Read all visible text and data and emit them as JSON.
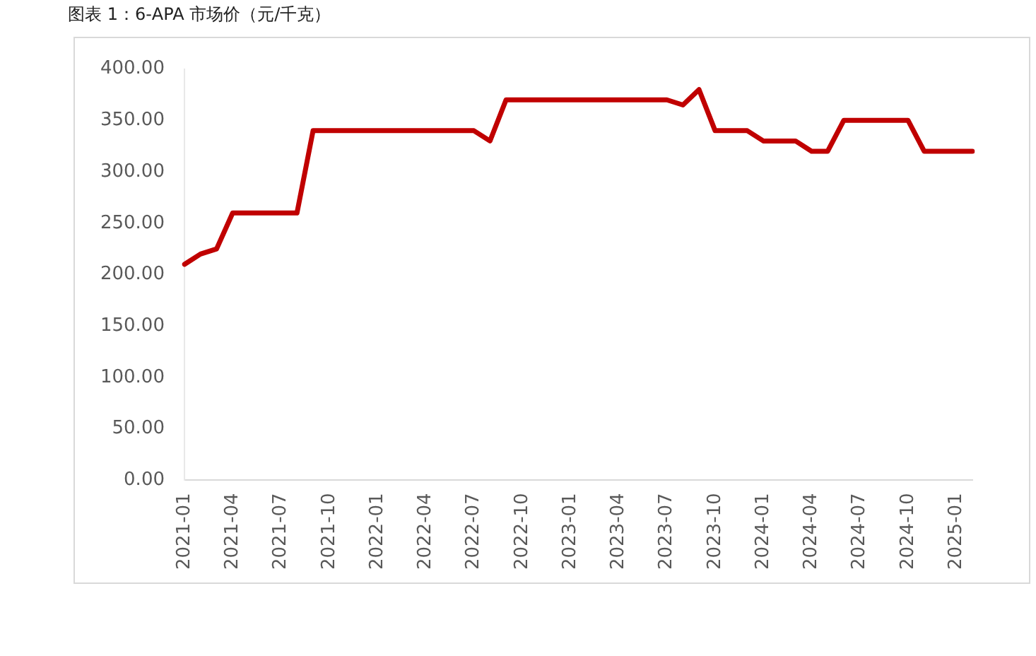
{
  "chart_data": {
    "type": "line",
    "title": "图表 1：6-APA 市场价（元/千克）",
    "categories": [
      "2021-01",
      null,
      null,
      "2021-04",
      null,
      null,
      "2021-07",
      null,
      null,
      "2021-10",
      null,
      null,
      "2022-01",
      null,
      null,
      "2022-04",
      null,
      null,
      "2022-07",
      null,
      null,
      "2022-10",
      null,
      null,
      "2023-01",
      null,
      null,
      "2023-04",
      null,
      null,
      "2023-07",
      null,
      null,
      "2023-10",
      null,
      null,
      "2024-01",
      null,
      null,
      "2024-04",
      null,
      null,
      "2024-07",
      null,
      null,
      "2024-10",
      null,
      null,
      "2025-01",
      null
    ],
    "series": [
      {
        "color": "#c00000",
        "values": [
          210,
          220,
          225,
          260,
          260,
          260,
          260,
          260,
          340,
          340,
          340,
          340,
          340,
          340,
          340,
          340,
          340,
          340,
          340,
          330,
          370,
          370,
          370,
          370,
          370,
          370,
          370,
          370,
          370,
          370,
          370,
          365,
          380,
          340,
          340,
          340,
          330,
          330,
          330,
          320,
          320,
          350,
          350,
          350,
          350,
          350,
          320,
          320,
          320,
          320
        ]
      }
    ],
    "ylim": [
      0,
      400
    ],
    "yticks": [
      {
        "value": 0,
        "label": "0.00"
      },
      {
        "value": 50,
        "label": "50.00"
      },
      {
        "value": 100,
        "label": "100.00"
      },
      {
        "value": 150,
        "label": "150.00"
      },
      {
        "value": 200,
        "label": "200.00"
      },
      {
        "value": 250,
        "label": "250.00"
      },
      {
        "value": 300,
        "label": "300.00"
      },
      {
        "value": 350,
        "label": "350.00"
      },
      {
        "value": 400,
        "label": "400.00"
      }
    ],
    "grid": false,
    "legend": false,
    "marker": "none",
    "line_style": "solid"
  }
}
